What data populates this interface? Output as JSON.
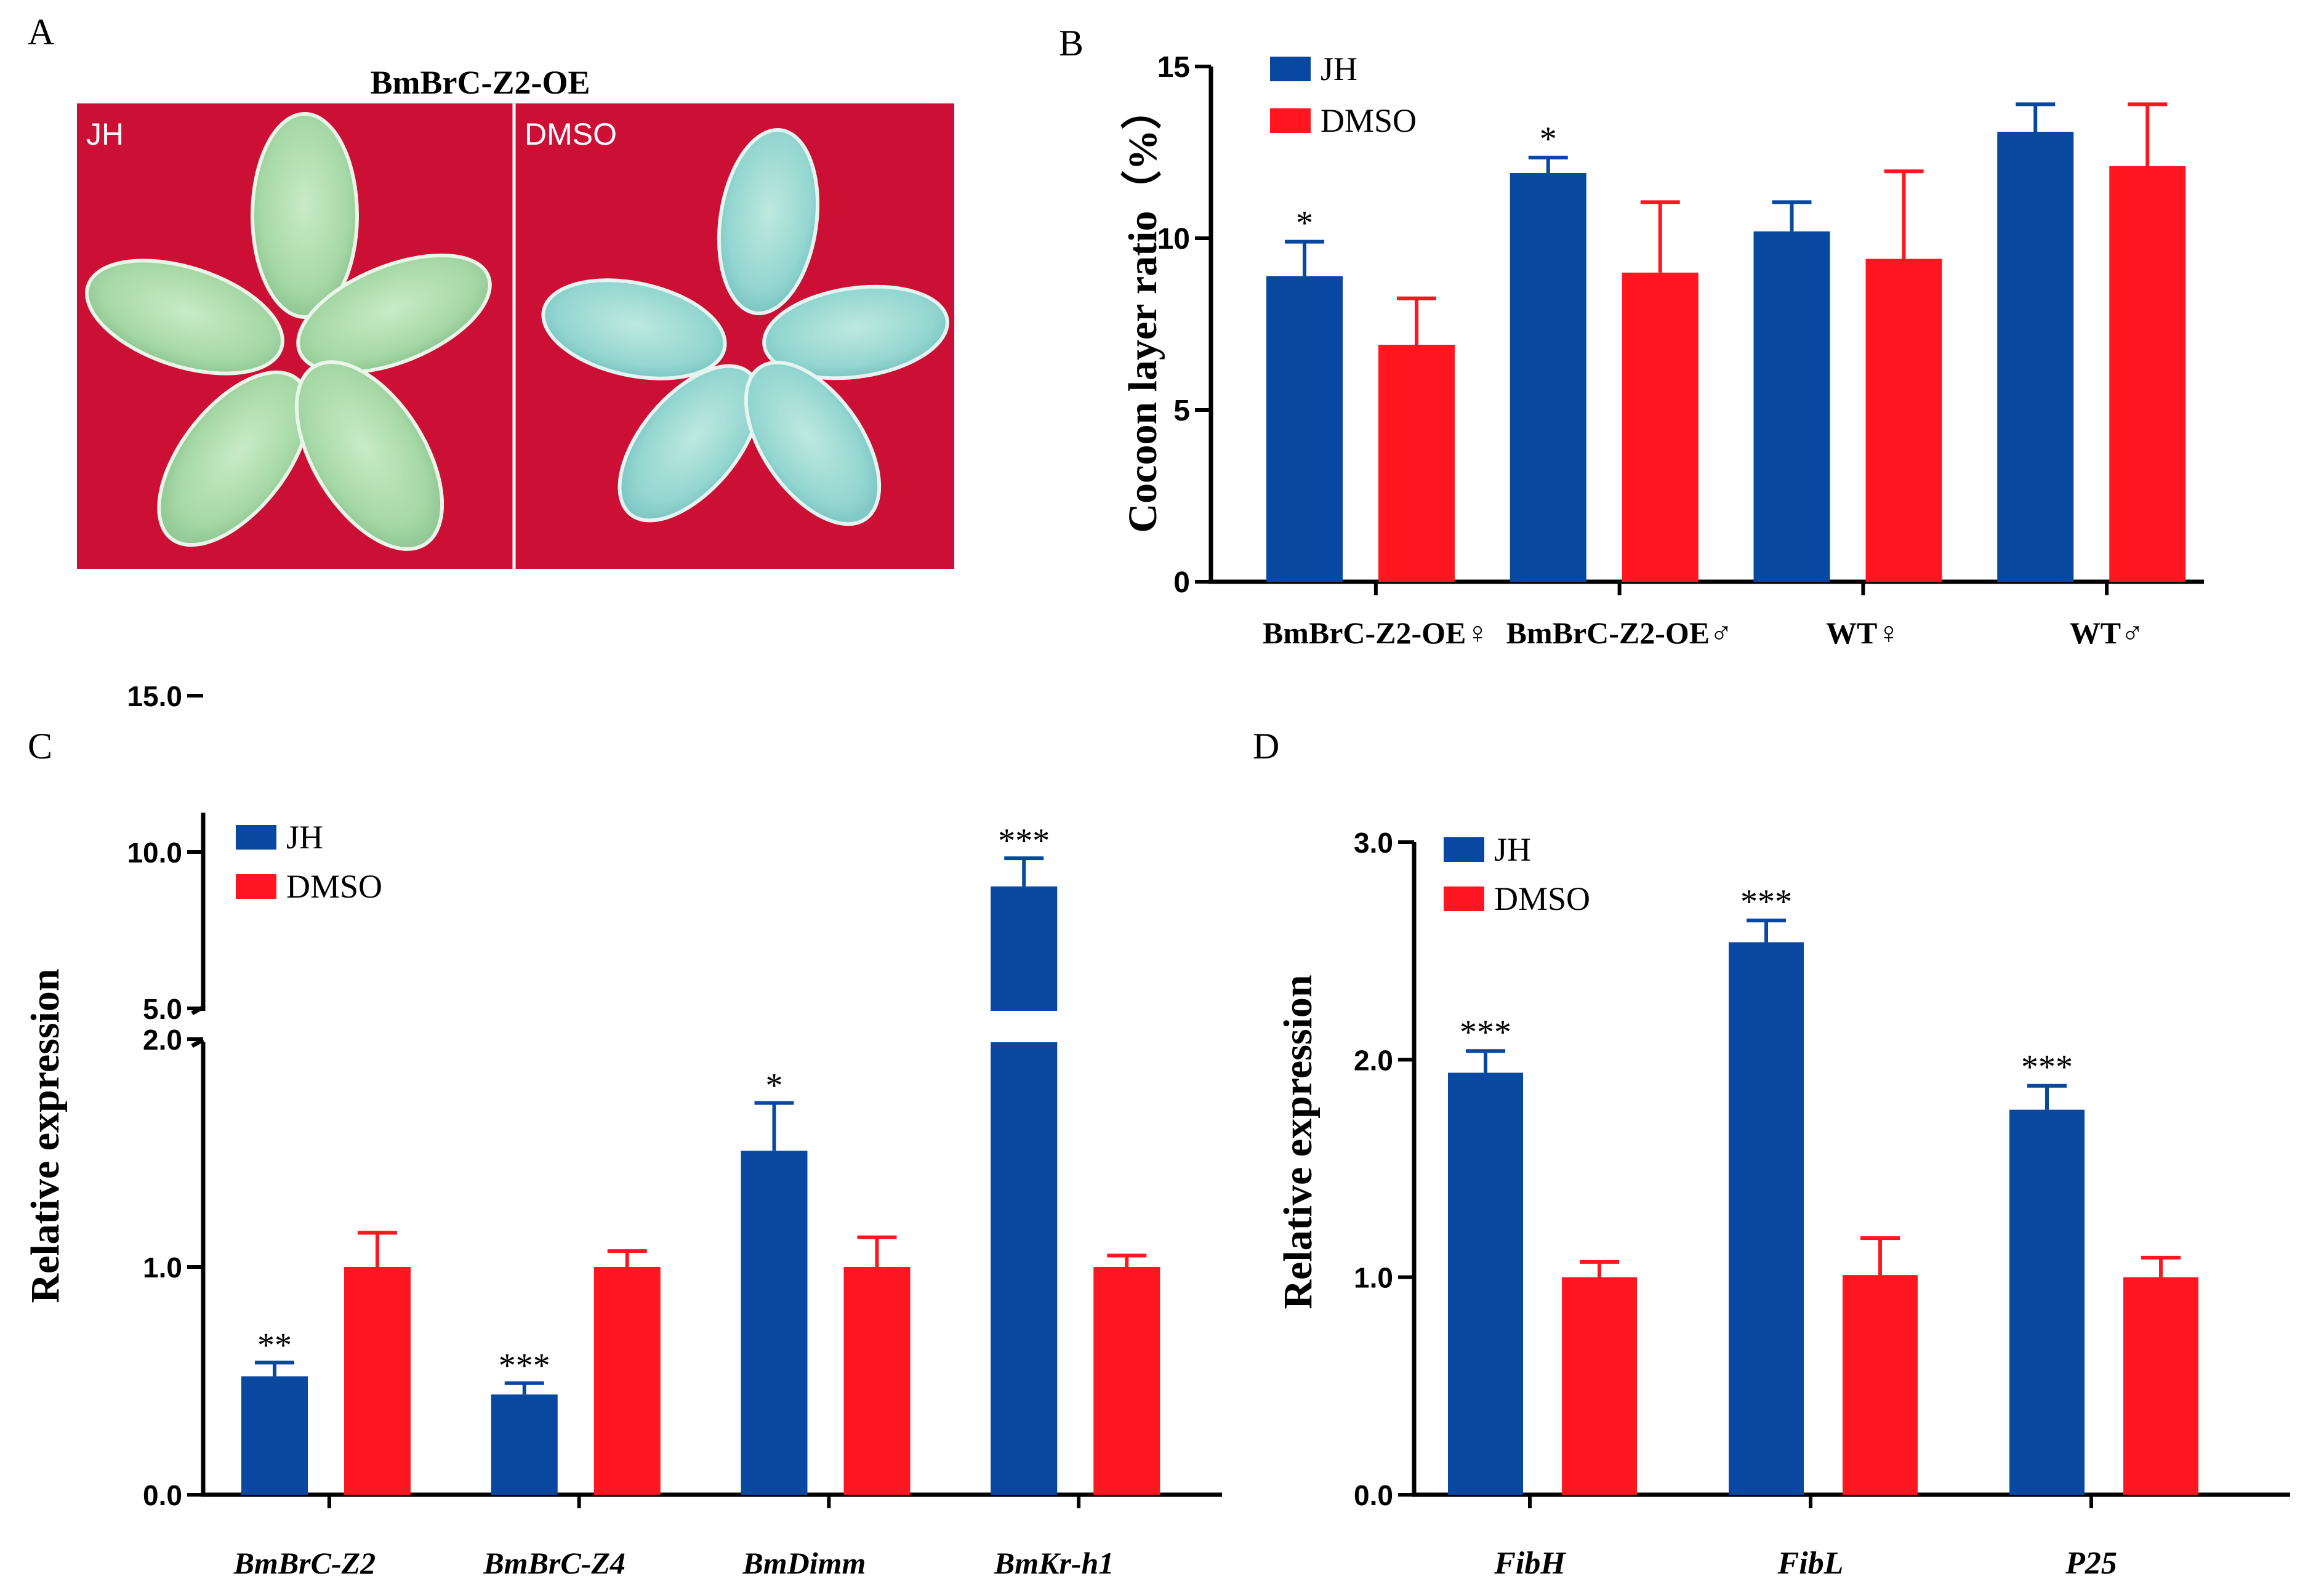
{
  "colors": {
    "jh": "#0848A0",
    "dmso": "#FF1621",
    "axis": "#000000",
    "photo_bg": "#CC1035"
  },
  "panels": {
    "A": {
      "label": "A",
      "title": "BmBrC-Z2-OE",
      "photo_labels": [
        "JH",
        "DMSO"
      ]
    }
  },
  "chart_data": [
    {
      "panel": "B",
      "type": "bar",
      "ylabel": "Cocoon layer ratio（%）",
      "ylim": [
        0,
        15
      ],
      "yticks": [
        "0",
        "5",
        "10",
        "15"
      ],
      "categories": [
        "BmBrC-Z2-OE♀",
        "BmBrC-Z2-OE♂",
        "WT♀",
        "WT♂"
      ],
      "legend": [
        "JH",
        "DMSO"
      ],
      "series": [
        {
          "name": "JH",
          "values": [
            8.9,
            11.9,
            10.2,
            13.1
          ],
          "errors": [
            1.0,
            0.45,
            0.85,
            0.8
          ]
        },
        {
          "name": "DMSO",
          "values": [
            6.9,
            9.0,
            9.4,
            12.1
          ],
          "errors": [
            1.35,
            2.05,
            2.55,
            1.8
          ]
        }
      ],
      "annotations": [
        "*",
        "*",
        "",
        ""
      ]
    },
    {
      "panel": "C",
      "type": "bar",
      "ylabel": "Relative expression",
      "yticks": [
        "0.0",
        "1.0",
        "2.0",
        "5.0",
        "10.0",
        "15.0"
      ],
      "axis_break": [
        2.0,
        5.0
      ],
      "categories": [
        "BmBrC-Z2",
        "BmBrC-Z4",
        "BmDimm",
        "BmKr-h1"
      ],
      "legend": [
        "JH",
        "DMSO"
      ],
      "series": [
        {
          "name": "JH",
          "values": [
            0.52,
            0.44,
            1.51,
            8.9
          ],
          "errors": [
            0.06,
            0.05,
            0.21,
            0.9
          ]
        },
        {
          "name": "DMSO",
          "values": [
            1.0,
            1.0,
            1.0,
            1.0
          ],
          "errors": [
            0.15,
            0.07,
            0.13,
            0.05
          ]
        }
      ],
      "annotations": [
        "**",
        "***",
        "*",
        "***"
      ]
    },
    {
      "panel": "D",
      "type": "bar",
      "ylabel": "Relative expression",
      "ylim": [
        0,
        3
      ],
      "yticks": [
        "0.0",
        "1.0",
        "2.0",
        "3.0"
      ],
      "categories": [
        "FibH",
        "FibL",
        "P25"
      ],
      "legend": [
        "JH",
        "DMSO"
      ],
      "series": [
        {
          "name": "JH",
          "values": [
            1.94,
            2.54,
            1.77
          ],
          "errors": [
            0.1,
            0.1,
            0.11
          ]
        },
        {
          "name": "DMSO",
          "values": [
            1.0,
            1.01,
            1.0
          ],
          "errors": [
            0.07,
            0.17,
            0.09
          ]
        }
      ],
      "annotations": [
        "***",
        "***",
        "***"
      ]
    }
  ]
}
